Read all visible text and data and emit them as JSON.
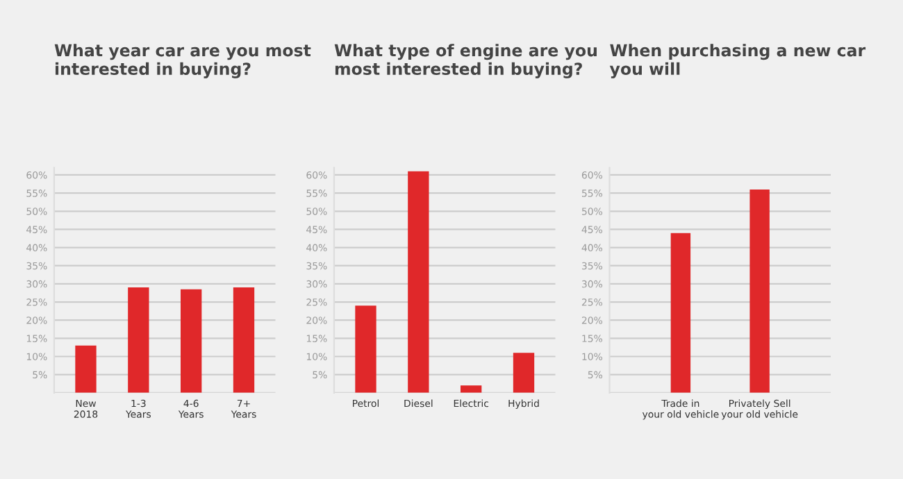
{
  "chart_data": [
    {
      "type": "bar",
      "title": "What year car are you most\ninterested in buying?",
      "categories": [
        "New\n2018",
        "1-3\nYears",
        "4-6\nYears",
        "7+\nYears"
      ],
      "values": [
        13,
        29,
        28.5,
        29
      ],
      "color": "#e0282a",
      "ylim": [
        0,
        62
      ],
      "yticks": [
        {
          "value": 0,
          "label": null
        },
        {
          "value": 5,
          "label": "5%"
        },
        {
          "value": 10,
          "label": "10%"
        },
        {
          "value": 15,
          "label": "15%"
        },
        {
          "value": 20,
          "label": "20%"
        },
        {
          "value": 25,
          "label": "25%"
        },
        {
          "value": 30,
          "label": "30%"
        },
        {
          "value": 35,
          "label": "35%"
        },
        {
          "value": 40,
          "label": "40%"
        },
        {
          "value": 45,
          "label": "45%"
        },
        {
          "value": 50,
          "label": "50%"
        },
        {
          "value": 55,
          "label": "55%"
        },
        {
          "value": 60,
          "label": "60%"
        }
      ],
      "grid": "y"
    },
    {
      "type": "bar",
      "title": "What type of engine are you\nmost interested in buying?",
      "categories": [
        "Petrol",
        "Diesel",
        "Electric",
        "Hybrid"
      ],
      "values": [
        24,
        61,
        2,
        11
      ],
      "color": "#e0282a",
      "ylim": [
        0,
        62
      ],
      "yticks": [
        {
          "value": 0,
          "label": null
        },
        {
          "value": 5,
          "label": "5%"
        },
        {
          "value": 10,
          "label": "10%"
        },
        {
          "value": 15,
          "label": "15%"
        },
        {
          "value": 20,
          "label": "20%"
        },
        {
          "value": 25,
          "label": "25%"
        },
        {
          "value": 30,
          "label": "30%"
        },
        {
          "value": 35,
          "label": "35%"
        },
        {
          "value": 40,
          "label": "40%"
        },
        {
          "value": 45,
          "label": "45%"
        },
        {
          "value": 50,
          "label": "50%"
        },
        {
          "value": 55,
          "label": "55%"
        },
        {
          "value": 60,
          "label": "60%"
        }
      ],
      "grid": "y"
    },
    {
      "type": "bar",
      "title": "When purchasing a new car\nyou will",
      "categories": [
        "Trade in\nyour old vehicle",
        "Privately Sell\nyour old vehicle"
      ],
      "values": [
        44,
        56
      ],
      "color": "#e0282a",
      "ylim": [
        0,
        62
      ],
      "yticks": [
        {
          "value": 0,
          "label": null
        },
        {
          "value": 5,
          "label": "5%"
        },
        {
          "value": 10,
          "label": "10%"
        },
        {
          "value": 15,
          "label": "15%"
        },
        {
          "value": 20,
          "label": "20%"
        },
        {
          "value": 25,
          "label": "25%"
        },
        {
          "value": 30,
          "label": "30%"
        },
        {
          "value": 35,
          "label": "35%"
        },
        {
          "value": 40,
          "label": "40%"
        },
        {
          "value": 45,
          "label": "45%"
        },
        {
          "value": 50,
          "label": "50%"
        },
        {
          "value": 55,
          "label": "55%"
        },
        {
          "value": 60,
          "label": "60%"
        }
      ],
      "grid": "y"
    }
  ]
}
